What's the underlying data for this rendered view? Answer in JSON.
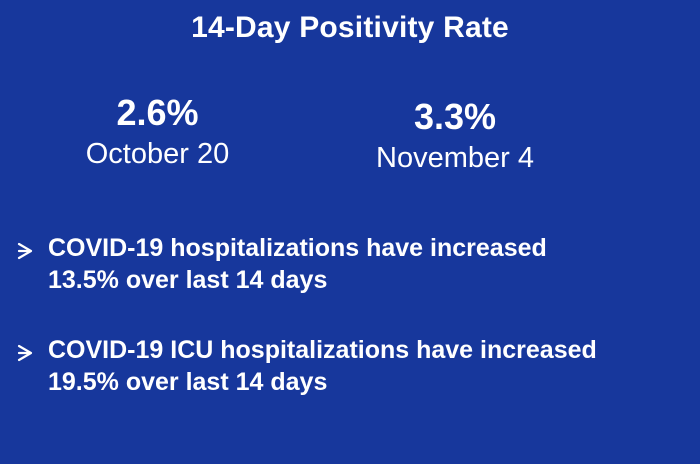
{
  "slide": {
    "title": "14-Day Positivity Rate",
    "stats": [
      {
        "value": "2.6%",
        "date": "October 20"
      },
      {
        "value": "3.3%",
        "date": "November 4"
      }
    ],
    "bullets": [
      {
        "line1": "COVID-19 hospitalizations have increased",
        "line2": "13.5% over last 14 days"
      },
      {
        "line1": "COVID-19 ICU hospitalizations have increased",
        "line2": "19.5% over last 14 days"
      }
    ],
    "colors": {
      "background": "#17379c",
      "text": "#ffffff"
    }
  }
}
